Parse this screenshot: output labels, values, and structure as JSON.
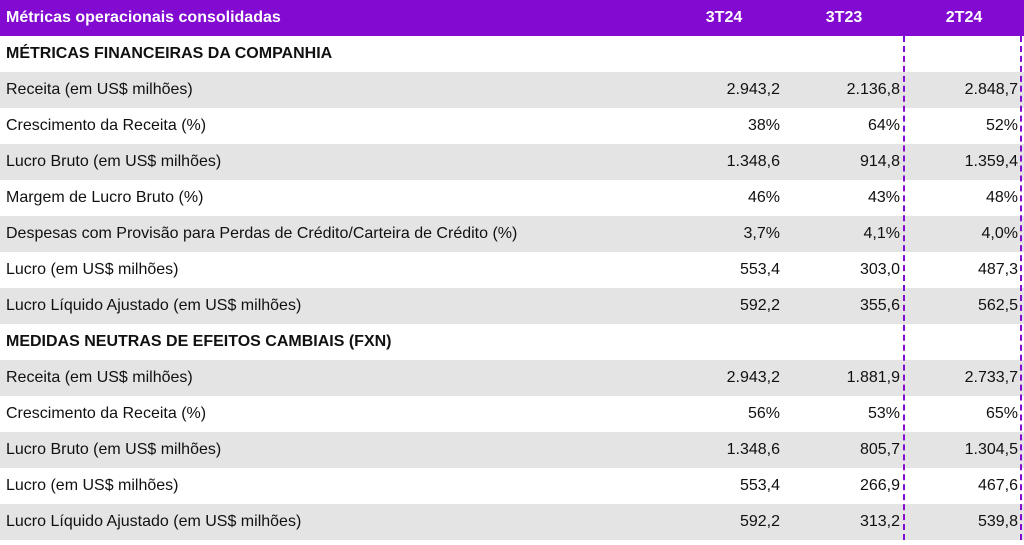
{
  "header": {
    "title": "Métricas operacionais consolidadas",
    "cols": [
      "3T24",
      "3T23",
      "2T24"
    ]
  },
  "sections": [
    {
      "title": "MÉTRICAS FINANCEIRAS DA COMPANHIA",
      "rows": [
        {
          "label": "Receita (em US$ milhões)",
          "v": [
            "2.943,2",
            "2.136,8",
            "2.848,7"
          ]
        },
        {
          "label": "Crescimento da Receita (%)",
          "v": [
            "38%",
            "64%",
            "52%"
          ]
        },
        {
          "label": "Lucro Bruto (em US$ milhões)",
          "v": [
            "1.348,6",
            "914,8",
            "1.359,4"
          ]
        },
        {
          "label": "Margem de Lucro Bruto (%)",
          "v": [
            "46%",
            "43%",
            "48%"
          ]
        },
        {
          "label": "Despesas com Provisão para Perdas de Crédito/Carteira de Crédito (%)",
          "v": [
            "3,7%",
            "4,1%",
            "4,0%"
          ]
        },
        {
          "label": "Lucro (em US$ milhões)",
          "v": [
            "553,4",
            "303,0",
            "487,3"
          ]
        },
        {
          "label": "Lucro Líquido Ajustado (em US$ milhões)",
          "v": [
            "592,2",
            "355,6",
            "562,5"
          ]
        }
      ]
    },
    {
      "title": "MEDIDAS NEUTRAS DE EFEITOS CAMBIAIS (FXN)",
      "rows": [
        {
          "label": "Receita (em US$ milhões)",
          "v": [
            "2.943,2",
            "1.881,9",
            "2.733,7"
          ]
        },
        {
          "label": "Crescimento da Receita (%)",
          "v": [
            "56%",
            "53%",
            "65%"
          ]
        },
        {
          "label": "Lucro Bruto (em US$ milhões)",
          "v": [
            "1.348,6",
            "805,7",
            "1.304,5"
          ]
        },
        {
          "label": "Lucro (em US$ milhões)",
          "v": [
            "553,4",
            "266,9",
            "467,6"
          ]
        },
        {
          "label": "Lucro Líquido Ajustado (em US$ milhões)",
          "v": [
            "592,2",
            "313,2",
            "539,8"
          ]
        }
      ]
    }
  ],
  "colors": {
    "accent": "#820ad1",
    "shade": "#e4e4e4"
  }
}
